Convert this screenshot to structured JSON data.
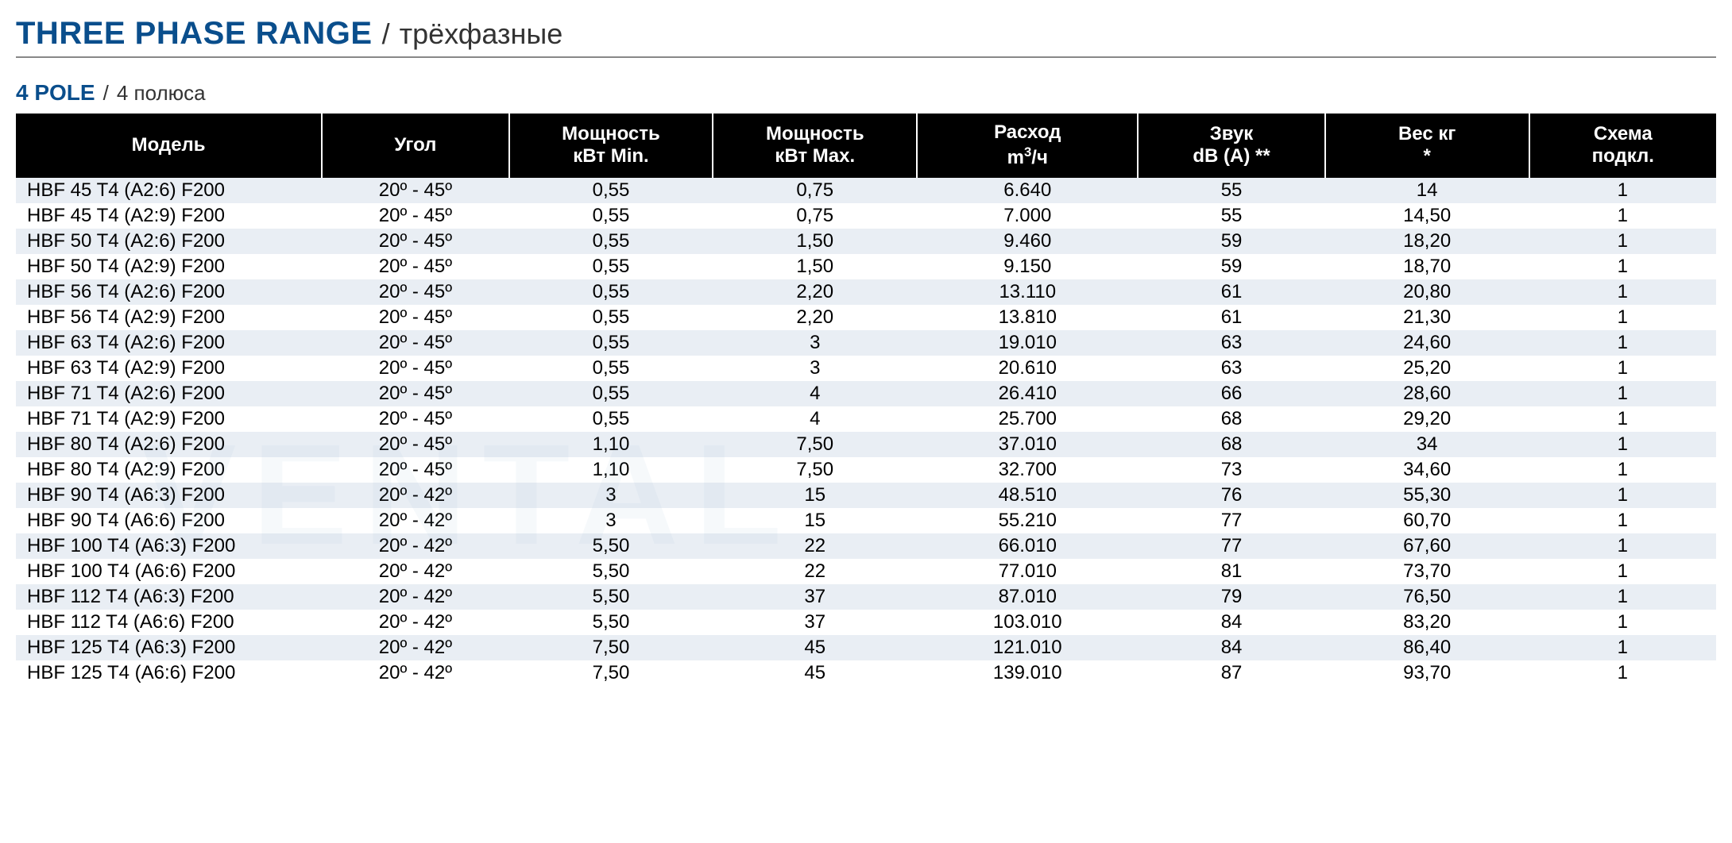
{
  "colors": {
    "accent_blue": "#0a4e8c",
    "rule_gray": "#888888",
    "header_bg": "#000000",
    "header_fg": "#ffffff",
    "row_odd_bg": "#e9eef4",
    "row_even_bg": "#ffffff",
    "text": "#000000",
    "subtext": "#333333",
    "watermark": "#7aa6c9"
  },
  "title": {
    "main": "THREE PHASE RANGE",
    "separator": "/",
    "sub": "трёхфазные"
  },
  "subtitle": {
    "main": "4 POLE",
    "separator": "/",
    "sub": "4 полюса"
  },
  "watermark_text": "VENTAL",
  "table": {
    "col_widths_pct": [
      18,
      11,
      12,
      12,
      13,
      11,
      12,
      11
    ],
    "columns": [
      {
        "key": "model",
        "label_html": "Модель",
        "align": "left"
      },
      {
        "key": "angle",
        "label_html": "Угол",
        "align": "center"
      },
      {
        "key": "kw_min",
        "label_html": "Мощность<br>кВт Min.",
        "align": "center"
      },
      {
        "key": "kw_max",
        "label_html": "Мощность<br>кВт Max.",
        "align": "center"
      },
      {
        "key": "flow",
        "label_html": "Расход<br>m<span class=\"sup\">3</span>/ч",
        "align": "center"
      },
      {
        "key": "sound",
        "label_html": "Звук<br>dB (A) **",
        "align": "center"
      },
      {
        "key": "weight",
        "label_html": "Вес кг<br>*",
        "align": "center"
      },
      {
        "key": "scheme",
        "label_html": "Схема<br>подкл.",
        "align": "center"
      }
    ],
    "rows": [
      {
        "model": "HBF 45 T4 (A2:6) F200",
        "angle": "20º - 45º",
        "kw_min": "0,55",
        "kw_max": "0,75",
        "flow": "6.640",
        "sound": "55",
        "weight": "14",
        "scheme": "1"
      },
      {
        "model": "HBF 45 T4 (A2:9) F200",
        "angle": "20º - 45º",
        "kw_min": "0,55",
        "kw_max": "0,75",
        "flow": "7.000",
        "sound": "55",
        "weight": "14,50",
        "scheme": "1"
      },
      {
        "model": "HBF 50 T4 (A2:6) F200",
        "angle": "20º - 45º",
        "kw_min": "0,55",
        "kw_max": "1,50",
        "flow": "9.460",
        "sound": "59",
        "weight": "18,20",
        "scheme": "1"
      },
      {
        "model": "HBF 50 T4 (A2:9) F200",
        "angle": "20º - 45º",
        "kw_min": "0,55",
        "kw_max": "1,50",
        "flow": "9.150",
        "sound": "59",
        "weight": "18,70",
        "scheme": "1"
      },
      {
        "model": "HBF 56 T4 (A2:6) F200",
        "angle": "20º - 45º",
        "kw_min": "0,55",
        "kw_max": "2,20",
        "flow": "13.110",
        "sound": "61",
        "weight": "20,80",
        "scheme": "1"
      },
      {
        "model": "HBF 56 T4 (A2:9) F200",
        "angle": "20º - 45º",
        "kw_min": "0,55",
        "kw_max": "2,20",
        "flow": "13.810",
        "sound": "61",
        "weight": "21,30",
        "scheme": "1"
      },
      {
        "model": "HBF 63 T4 (A2:6) F200",
        "angle": "20º - 45º",
        "kw_min": "0,55",
        "kw_max": "3",
        "flow": "19.010",
        "sound": "63",
        "weight": "24,60",
        "scheme": "1"
      },
      {
        "model": "HBF 63 T4 (A2:9) F200",
        "angle": "20º - 45º",
        "kw_min": "0,55",
        "kw_max": "3",
        "flow": "20.610",
        "sound": "63",
        "weight": "25,20",
        "scheme": "1"
      },
      {
        "model": "HBF 71 T4 (A2:6) F200",
        "angle": "20º - 45º",
        "kw_min": "0,55",
        "kw_max": "4",
        "flow": "26.410",
        "sound": "66",
        "weight": "28,60",
        "scheme": "1"
      },
      {
        "model": "HBF 71 T4 (A2:9) F200",
        "angle": "20º - 45º",
        "kw_min": "0,55",
        "kw_max": "4",
        "flow": "25.700",
        "sound": "68",
        "weight": "29,20",
        "scheme": "1"
      },
      {
        "model": "HBF 80 T4 (A2:6) F200",
        "angle": "20º - 45º",
        "kw_min": "1,10",
        "kw_max": "7,50",
        "flow": "37.010",
        "sound": "68",
        "weight": "34",
        "scheme": "1"
      },
      {
        "model": "HBF 80 T4 (A2:9) F200",
        "angle": "20º - 45º",
        "kw_min": "1,10",
        "kw_max": "7,50",
        "flow": "32.700",
        "sound": "73",
        "weight": "34,60",
        "scheme": "1"
      },
      {
        "model": "HBF 90 T4 (A6:3) F200",
        "angle": "20º - 42º",
        "kw_min": "3",
        "kw_max": "15",
        "flow": "48.510",
        "sound": "76",
        "weight": "55,30",
        "scheme": "1"
      },
      {
        "model": "HBF 90 T4 (A6:6) F200",
        "angle": "20º - 42º",
        "kw_min": "3",
        "kw_max": "15",
        "flow": "55.210",
        "sound": "77",
        "weight": "60,70",
        "scheme": "1"
      },
      {
        "model": "HBF 100 T4 (A6:3) F200",
        "angle": "20º - 42º",
        "kw_min": "5,50",
        "kw_max": "22",
        "flow": "66.010",
        "sound": "77",
        "weight": "67,60",
        "scheme": "1"
      },
      {
        "model": "HBF 100 T4 (A6:6) F200",
        "angle": "20º - 42º",
        "kw_min": "5,50",
        "kw_max": "22",
        "flow": "77.010",
        "sound": "81",
        "weight": "73,70",
        "scheme": "1"
      },
      {
        "model": "HBF 112 T4 (A6:3) F200",
        "angle": "20º - 42º",
        "kw_min": "5,50",
        "kw_max": "37",
        "flow": "87.010",
        "sound": "79",
        "weight": "76,50",
        "scheme": "1"
      },
      {
        "model": "HBF 112 T4 (A6:6) F200",
        "angle": "20º - 42º",
        "kw_min": "5,50",
        "kw_max": "37",
        "flow": "103.010",
        "sound": "84",
        "weight": "83,20",
        "scheme": "1"
      },
      {
        "model": "HBF 125 T4 (A6:3) F200",
        "angle": "20º - 42º",
        "kw_min": "7,50",
        "kw_max": "45",
        "flow": "121.010",
        "sound": "84",
        "weight": "86,40",
        "scheme": "1"
      },
      {
        "model": "HBF 125 T4 (A6:6) F200",
        "angle": "20º - 42º",
        "kw_min": "7,50",
        "kw_max": "45",
        "flow": "139.010",
        "sound": "87",
        "weight": "93,70",
        "scheme": "1"
      }
    ]
  }
}
